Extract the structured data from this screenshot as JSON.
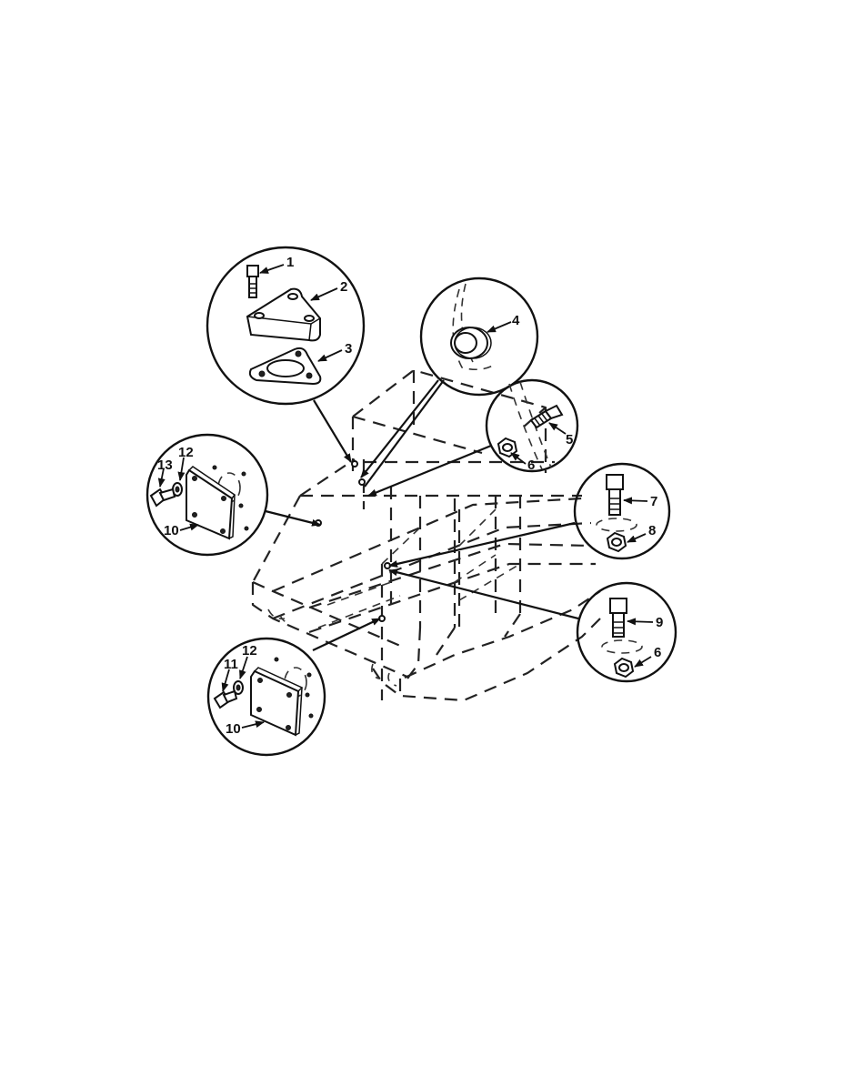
{
  "callouts": {
    "c1": "1",
    "c2": "2",
    "c3": "3",
    "c4": "4",
    "c5": "5",
    "c6a": "6",
    "c6b": "6",
    "c7": "7",
    "c8": "8",
    "c9": "9",
    "c6c": "6",
    "c10a": "10",
    "c12a": "12",
    "c13": "13",
    "c10b": "10",
    "c11": "11",
    "c12b": "12"
  }
}
